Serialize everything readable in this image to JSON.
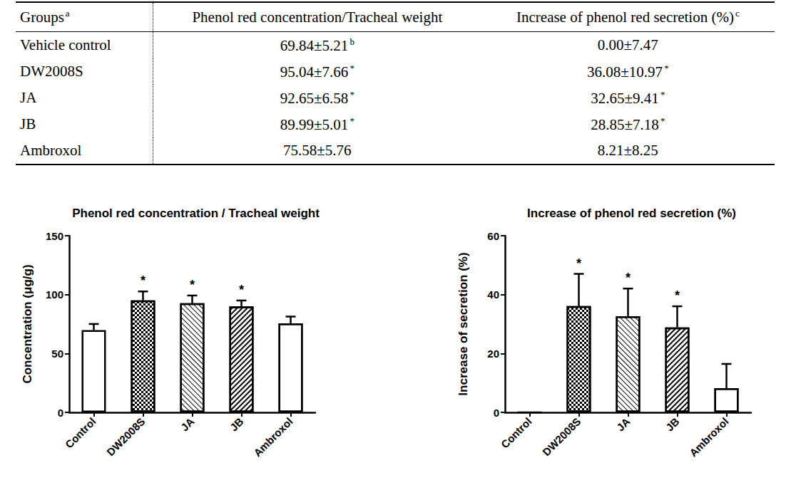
{
  "table": {
    "header": [
      {
        "text": "Groups",
        "sup": "a"
      },
      {
        "text": "Phenol red concentration/Tracheal weight"
      },
      {
        "text": "Increase of phenol red secretion (%)",
        "sup": "c"
      }
    ],
    "rows": [
      [
        {
          "text": "Vehicle control"
        },
        {
          "text": "69.84±5.21",
          "sup": "b"
        },
        {
          "text": "0.00±7.47"
        }
      ],
      [
        {
          "text": "DW2008S"
        },
        {
          "text": "95.04±7.66",
          "sup": "*"
        },
        {
          "text": "36.08±10.97",
          "sup": "*"
        }
      ],
      [
        {
          "text": "JA"
        },
        {
          "text": "92.65±6.58",
          "sup": "*"
        },
        {
          "text": "32.65±9.41",
          "sup": "*"
        }
      ],
      [
        {
          "text": "JB"
        },
        {
          "text": "89.99±5.01",
          "sup": "*"
        },
        {
          "text": "28.85±7.18",
          "sup": "*"
        }
      ],
      [
        {
          "text": "Ambroxol"
        },
        {
          "text": "75.58±5.76"
        },
        {
          "text": "8.21±8.25"
        }
      ]
    ]
  },
  "chart_data": [
    {
      "type": "bar",
      "title": "Phenol red concentration / Tracheal weight",
      "y_label": "Concentration (μg/g)",
      "categories": [
        "Control",
        "DW2008S",
        "JA",
        "JB",
        "Ambroxol"
      ],
      "values": [
        69.84,
        95.04,
        92.65,
        89.99,
        75.58
      ],
      "errors": [
        5.21,
        7.66,
        6.58,
        5.01,
        5.76
      ],
      "annotations": [
        null,
        "*",
        "*",
        "*",
        null
      ],
      "ylim": [
        0,
        150
      ],
      "yticks": [
        0,
        50,
        100,
        150
      ],
      "grid": false,
      "color": "#000000"
    },
    {
      "type": "bar",
      "title": "Increase of phenol red secretion (%)",
      "y_label": "Increase of secretion (%)",
      "categories": [
        "Control",
        "DW2008S",
        "JA",
        "JB",
        "Ambroxol"
      ],
      "values": [
        0,
        36.08,
        32.65,
        28.85,
        8.21
      ],
      "errors": [
        null,
        10.97,
        9.41,
        7.18,
        8.25
      ],
      "annotations": [
        null,
        "*",
        "*",
        "*",
        null
      ],
      "ylim": [
        0,
        60
      ],
      "yticks": [
        0,
        20,
        40,
        60
      ],
      "grid": false,
      "color": "#000000"
    }
  ]
}
